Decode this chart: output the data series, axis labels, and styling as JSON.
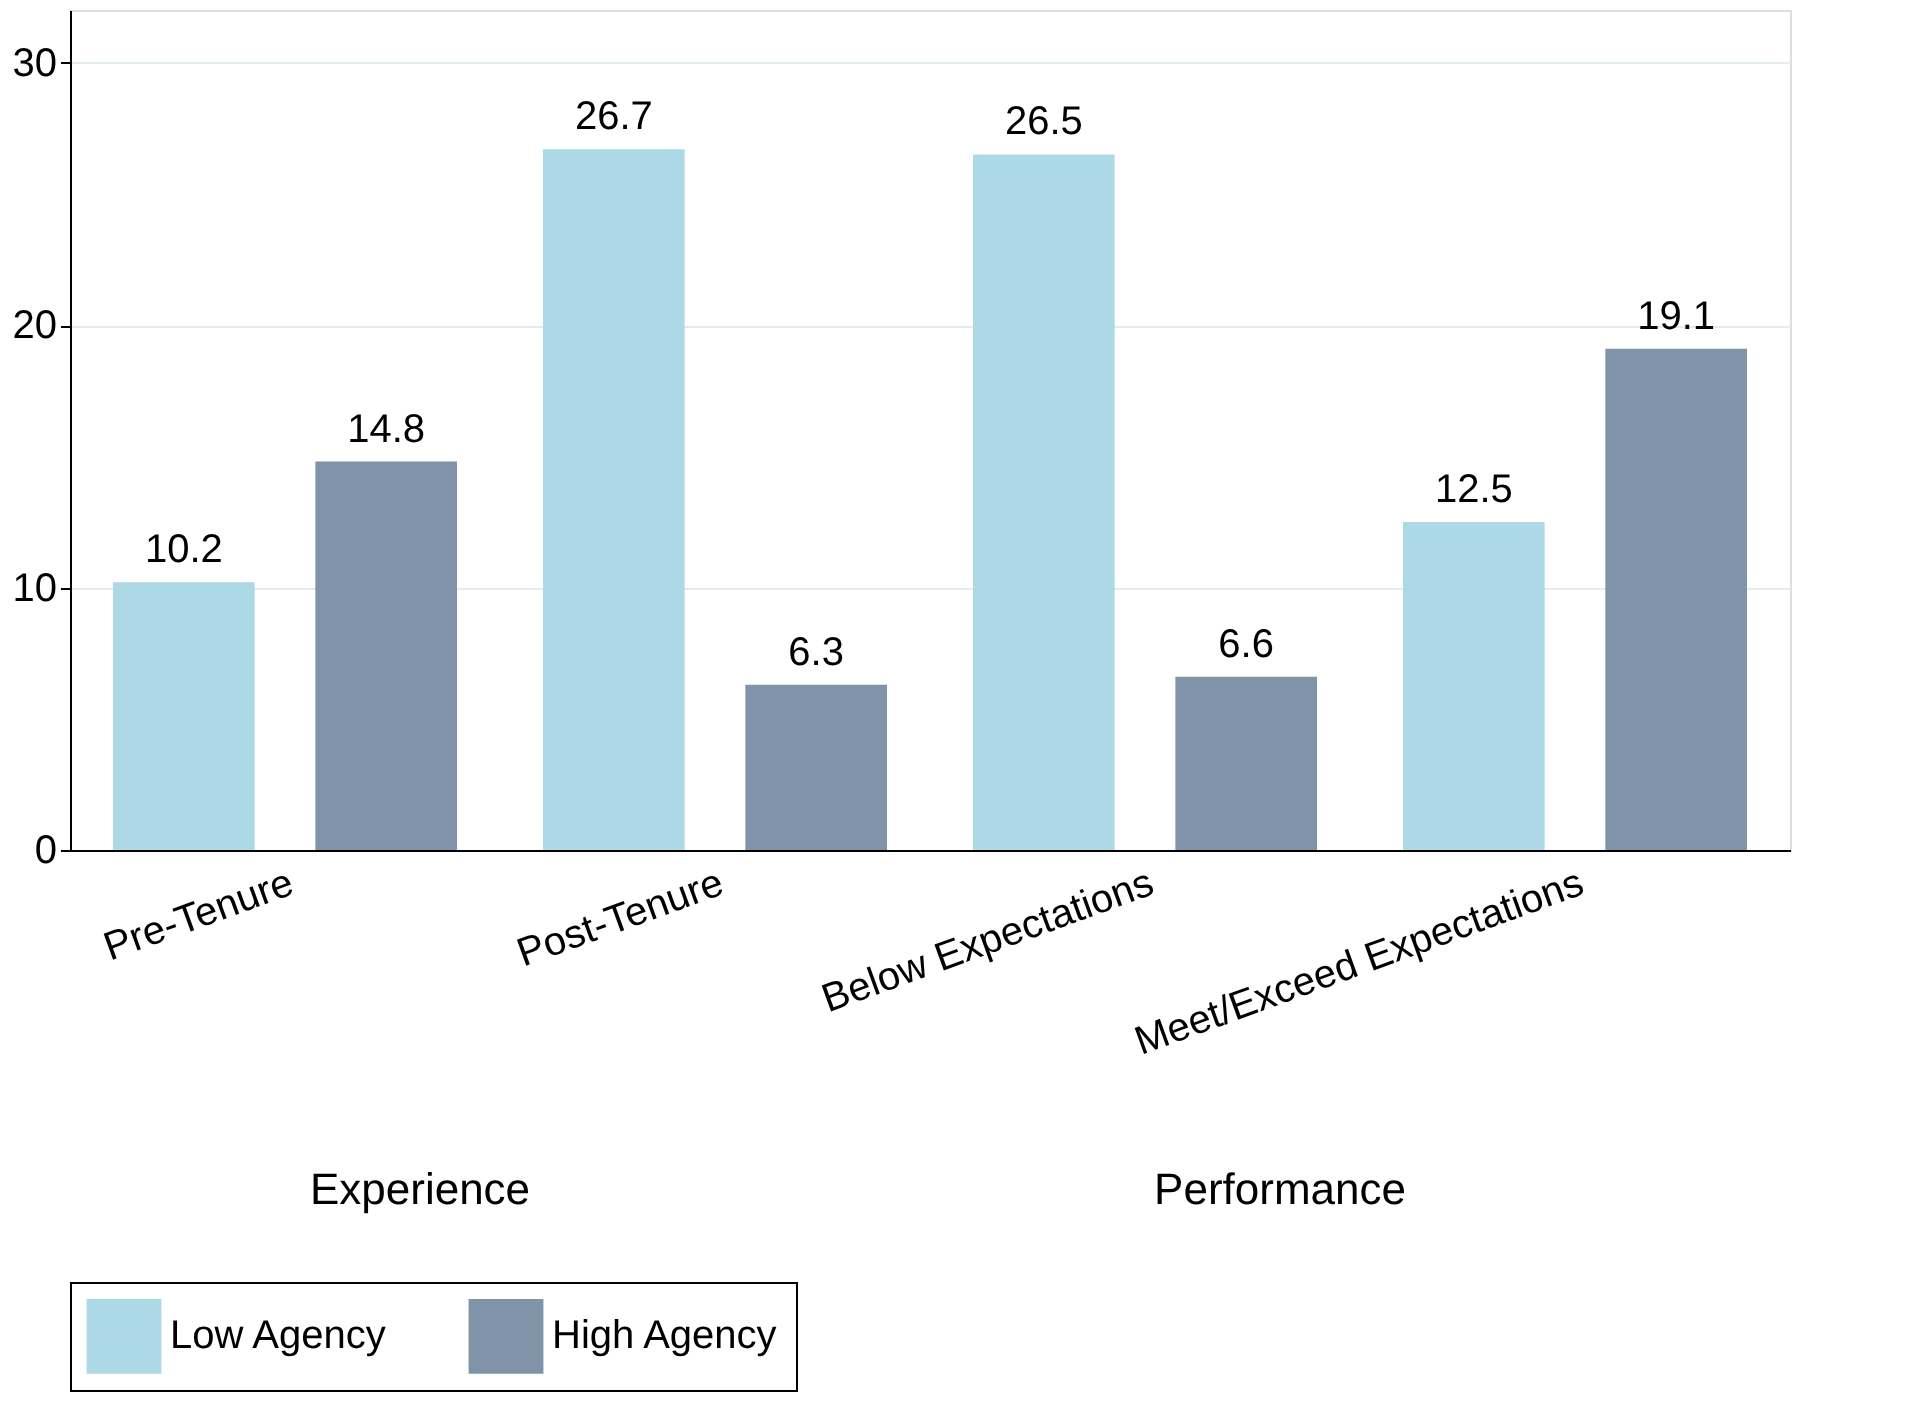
{
  "chart_data": {
    "type": "bar",
    "categories": [
      "Pre-Tenure",
      "Post-Tenure",
      "Below Expectations",
      "Meet/Exceed Expectations"
    ],
    "series": [
      {
        "name": "Low Agency",
        "color": "#add8e6",
        "values": [
          10.2,
          26.7,
          26.5,
          12.5
        ]
      },
      {
        "name": "High Agency",
        "color": "#7f93a9",
        "values": [
          14.8,
          6.3,
          6.6,
          19.1
        ]
      }
    ],
    "ylim": [
      0,
      32
    ],
    "yticks": [
      0,
      10,
      20,
      30
    ],
    "grid": "y",
    "data_labels": true,
    "legend": "bottom",
    "annotations": [
      "Experience",
      "Performance"
    ]
  }
}
